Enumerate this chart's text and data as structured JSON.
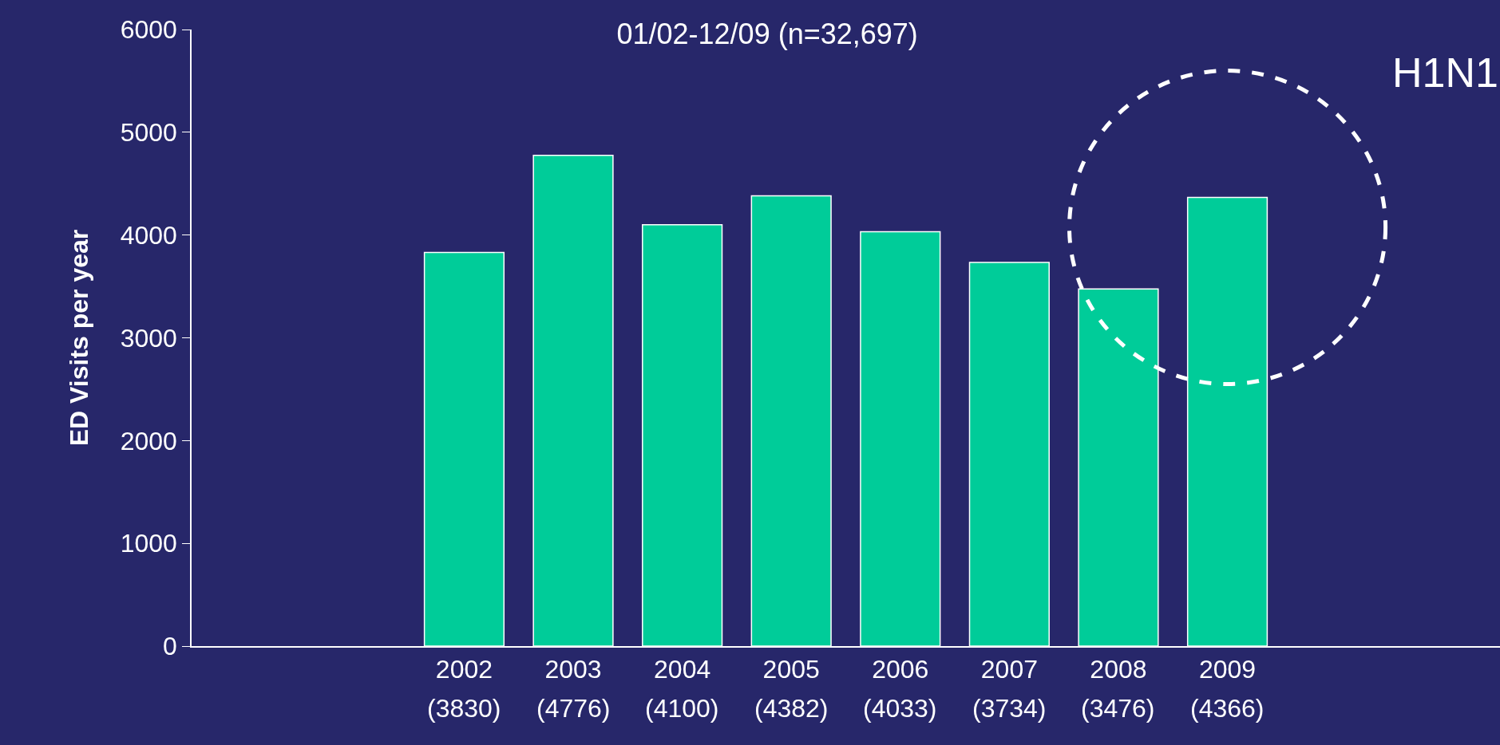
{
  "chart_data": {
    "type": "bar",
    "title": "01/02-12/09 (n=32,697)",
    "ylabel": "ED Visits per year",
    "categories": [
      null,
      null,
      "2002\n(3830)",
      "2003\n(4776)",
      "2004\n(4100)",
      "2005\n(4382)",
      "2006\n(4033)",
      "2007\n(3734)",
      "2008\n(3476)",
      "2009\n(4366)",
      null,
      null
    ],
    "values": [
      null,
      null,
      3830,
      4776,
      4100,
      4382,
      4033,
      3734,
      3476,
      4366,
      null,
      null
    ],
    "color": "#00cc99",
    "ylim": [
      0,
      6000
    ],
    "yticks": [
      0,
      1000,
      2000,
      3000,
      4000,
      5000,
      6000
    ],
    "annotations": [
      "H1N1"
    ],
    "grid": false,
    "legend": false
  }
}
